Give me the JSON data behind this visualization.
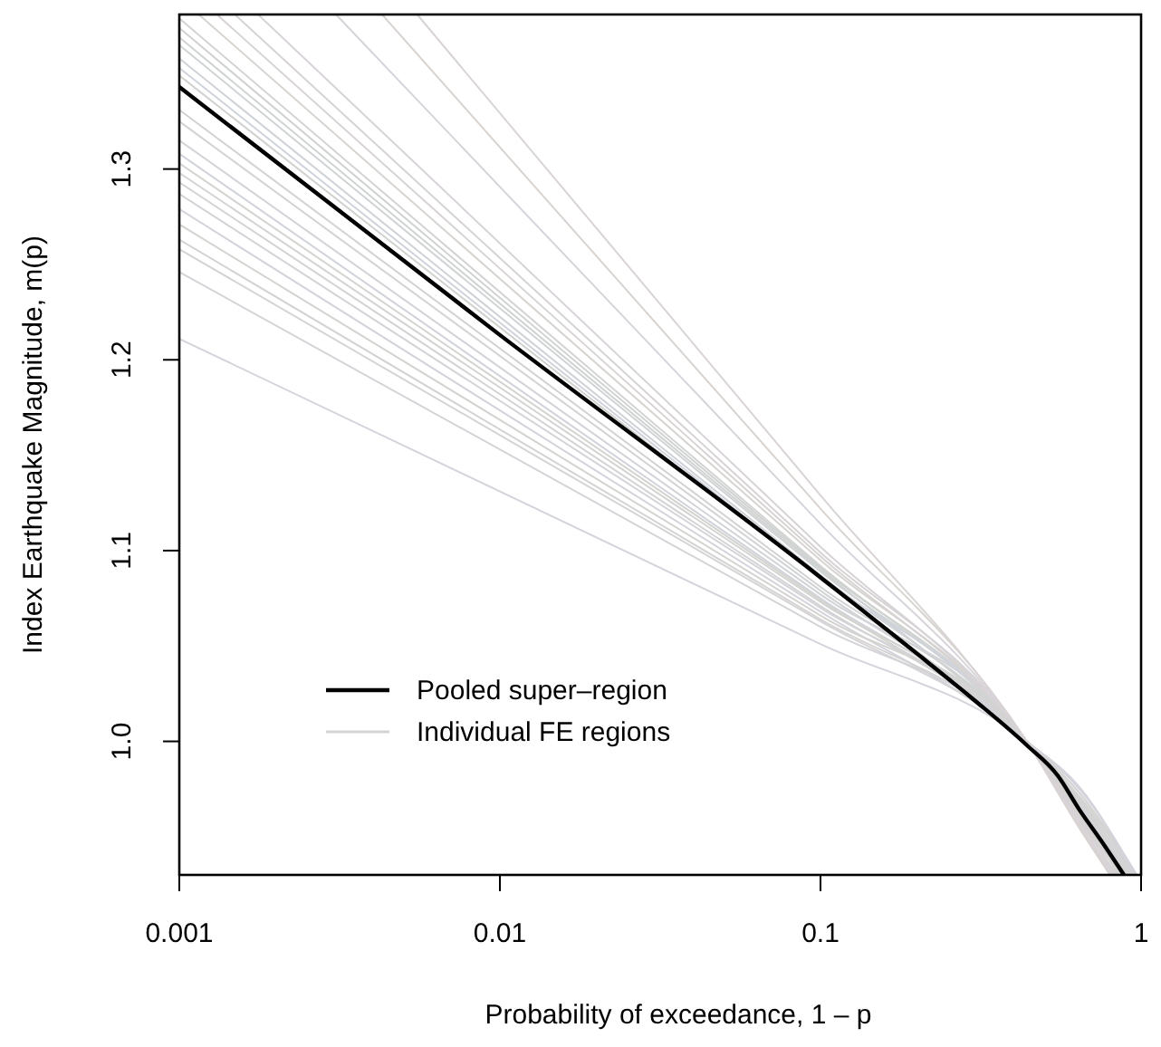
{
  "chart_data": {
    "type": "line",
    "xlabel": "Probability of exceedance, 1 – p",
    "ylabel": "Index Earthquake Magnitude, m(p)",
    "log": "x",
    "xlim": [
      0.001,
      1
    ],
    "ylim": [
      0.93,
      1.381
    ],
    "xticks": [
      0.001,
      0.01,
      0.1,
      1
    ],
    "yticks": [
      {
        "value": 1,
        "label": "1.0"
      },
      1.1,
      1.2,
      1.3
    ],
    "grid": false,
    "legend": "bottom left",
    "marker": "none",
    "line_style": "solid",
    "series": [
      {
        "name": "Individual FE regions",
        "color": "#d3d3d3",
        "x": [
          0.001,
          0.1,
          0.44,
          0.65,
          0.9
        ],
        "values": [
          1.379,
          1.092,
          1.0,
          0.962,
          0.93
        ]
      },
      {
        "color": "#cfd3cf",
        "x": [
          0.001,
          0.1,
          0.44,
          0.65,
          0.84
        ],
        "values": [
          1.374,
          1.091,
          1.0,
          0.958,
          0.93
        ]
      },
      {
        "color": "#cfd3d2",
        "x": [
          0.001,
          0.1,
          0.44,
          0.65,
          0.95
        ],
        "values": [
          1.369,
          1.09,
          1.0,
          0.968,
          0.93
        ]
      },
      {
        "color": "#cfd3d5",
        "x": [
          0.001,
          0.1,
          0.44,
          0.65,
          0.87
        ],
        "values": [
          1.365,
          1.089,
          1.0,
          0.96,
          0.93
        ]
      },
      {
        "color": "#cfd3d8",
        "x": [
          0.001,
          0.1,
          0.44,
          0.65,
          0.92
        ],
        "values": [
          1.358,
          1.087,
          1.0,
          0.965,
          0.93
        ]
      },
      {
        "color": "#cfd3db",
        "x": [
          0.001,
          0.1,
          0.44,
          0.65,
          0.82
        ],
        "values": [
          1.353,
          1.086,
          1.0,
          0.956,
          0.93
        ]
      },
      {
        "color": "#d1d3cf",
        "x": [
          0.001,
          0.1,
          0.44,
          0.65,
          0.97
        ],
        "values": [
          1.349,
          1.085,
          1.0,
          0.972,
          0.93
        ]
      },
      {
        "color": "#d1d3d2",
        "x": [
          0.001,
          0.1,
          0.44,
          0.65,
          0.86
        ],
        "values": [
          1.331,
          1.081,
          1.0,
          0.961,
          0.93
        ]
      },
      {
        "color": "#d1d3d5",
        "x": [
          0.001,
          0.1,
          0.44,
          0.65,
          0.93
        ],
        "values": [
          1.325,
          1.079,
          1.0,
          0.967,
          0.93
        ]
      },
      {
        "color": "#d1d3d8",
        "x": [
          0.001,
          0.1,
          0.44,
          0.65,
          0.8
        ],
        "values": [
          1.315,
          1.077,
          1.0,
          0.955,
          0.93
        ]
      },
      {
        "color": "#d1d3db",
        "x": [
          0.001,
          0.1,
          0.44,
          0.65,
          0.9
        ],
        "values": [
          1.308,
          1.075,
          1.0,
          0.966,
          0.93
        ]
      },
      {
        "color": "#d3d3cf",
        "x": [
          0.001,
          0.1,
          0.44,
          0.65,
          0.96
        ],
        "values": [
          1.303,
          1.074,
          1.0,
          0.97,
          0.93
        ]
      },
      {
        "color": "#d3d3d1",
        "x": [
          0.001,
          0.1,
          0.44,
          0.65,
          0.85
        ],
        "values": [
          1.298,
          1.073,
          1.0,
          0.962,
          0.93
        ]
      },
      {
        "color": "#d3d3d6",
        "x": [
          0.001,
          0.1,
          0.44,
          0.65,
          0.94
        ],
        "values": [
          1.293,
          1.071,
          1.0,
          0.969,
          0.93
        ]
      },
      {
        "color": "#d3d3d8",
        "x": [
          0.001,
          0.1,
          0.44,
          0.65,
          0.88
        ],
        "values": [
          1.287,
          1.07,
          1.0,
          0.964,
          0.93
        ]
      },
      {
        "color": "#d3d3db",
        "x": [
          0.001,
          0.1,
          0.44,
          0.65,
          0.97
        ],
        "values": [
          1.279,
          1.068,
          1.0,
          0.974,
          0.93
        ]
      },
      {
        "color": "#d5d3cf",
        "x": [
          0.001,
          0.1,
          0.44,
          0.65,
          0.83
        ],
        "values": [
          1.271,
          1.066,
          1.0,
          0.96,
          0.93
        ]
      },
      {
        "color": "#d5d3d2",
        "x": [
          0.001,
          0.1,
          0.44,
          0.65,
          0.91
        ],
        "values": [
          1.263,
          1.064,
          1.0,
          0.968,
          0.93
        ]
      },
      {
        "color": "#d5d3d5",
        "x": [
          0.001,
          0.1,
          0.44,
          0.65,
          0.95
        ],
        "values": [
          1.258,
          1.063,
          1.0,
          0.972,
          0.93
        ]
      },
      {
        "color": "#d5d3d8",
        "x": [
          0.001,
          0.1,
          0.44,
          0.65,
          0.89
        ],
        "values": [
          1.246,
          1.06,
          1.0,
          0.966,
          0.93
        ]
      },
      {
        "color": "#d5d3db",
        "x": [
          0.001,
          0.1,
          0.44,
          0.65,
          0.96
        ],
        "values": [
          1.211,
          1.051,
          1.0,
          0.975,
          0.93
        ]
      },
      {
        "color": "#d7d3cf",
        "x": [
          0.00115,
          0.1,
          0.44,
          0.65,
          0.81
        ],
        "values": [
          1.381,
          1.095,
          1.0,
          0.956,
          0.93
        ]
      },
      {
        "color": "#d7d3d2",
        "x": [
          0.00131,
          0.1,
          0.44,
          0.65,
          0.86
        ],
        "values": [
          1.381,
          1.097,
          1.0,
          0.959,
          0.93
        ]
      },
      {
        "color": "#d7d3d5",
        "x": [
          0.00149,
          0.1,
          0.44,
          0.65,
          0.8
        ],
        "values": [
          1.381,
          1.099,
          1.0,
          0.954,
          0.93
        ]
      },
      {
        "color": "#d7d3d8",
        "x": [
          0.00176,
          0.1,
          0.44,
          0.65,
          0.84
        ],
        "values": [
          1.381,
          1.102,
          1.0,
          0.957,
          0.93
        ]
      },
      {
        "color": "#d7d3db",
        "x": [
          0.00308,
          0.1,
          0.44,
          0.65,
          0.82
        ],
        "values": [
          1.381,
          1.114,
          1.0,
          0.955,
          0.93
        ]
      },
      {
        "color": "#d9d3cf",
        "x": [
          0.00429,
          0.1,
          0.44,
          0.65,
          0.8
        ],
        "values": [
          1.381,
          1.122,
          1.0,
          0.953,
          0.93
        ]
      },
      {
        "color": "#d9d3d5",
        "x": [
          0.00552,
          0.1,
          0.44,
          0.65,
          0.83
        ],
        "values": [
          1.381,
          1.129,
          1.0,
          0.955,
          0.93
        ]
      },
      {
        "name": "Pooled super–region",
        "color": "#000000",
        "x": [
          0.001,
          0.01,
          0.1,
          0.2,
          0.3,
          0.44,
          0.55,
          0.643,
          0.75,
          0.884
        ],
        "values": [
          1.343,
          1.213,
          1.086,
          1.046,
          1.022,
          0.998,
          0.982,
          0.964,
          0.948,
          0.93
        ]
      }
    ]
  }
}
